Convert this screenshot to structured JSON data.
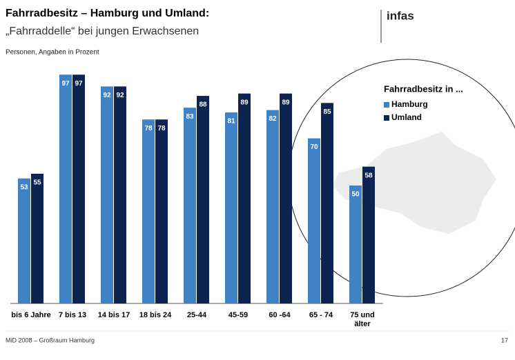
{
  "title": "Fahrradbesitz – Hamburg und Umland:",
  "subtitle": "„Fahrraddelle“ bei jungen Erwachsenen",
  "note": "Personen, Angaben in Prozent",
  "logo": "infas",
  "footer": "MiD 2008 – Großraum Hamburg",
  "page_number": "17",
  "chart_data": {
    "type": "bar",
    "legend_title": "Fahrradbesitz in ...",
    "categories": [
      "bis 6 Jahre",
      "7 bis 13",
      "14 bis 17",
      "18 bis 24",
      "25-44",
      "45-59",
      "60 -64",
      "65 - 74",
      "75 und älter"
    ],
    "series": [
      {
        "name": "Hamburg",
        "color": "#3f83c6",
        "values": [
          53,
          97,
          92,
          78,
          83,
          81,
          82,
          70,
          50
        ]
      },
      {
        "name": "Umland",
        "color": "#0d2450",
        "values": [
          55,
          97,
          92,
          78,
          88,
          89,
          89,
          85,
          58
        ]
      }
    ]
  }
}
